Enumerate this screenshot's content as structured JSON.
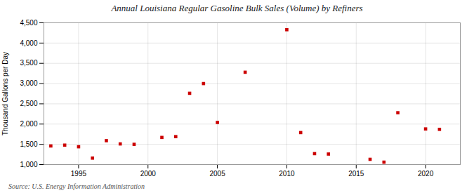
{
  "chart_data": {
    "type": "scatter",
    "title": "Annual Louisiana Regular Gasoline Bulk Sales (Volume) by Refiners",
    "ylabel": "Thousand Gallons per Day",
    "annotations": [
      "Source: U.S. Energy Information Administration"
    ],
    "x": [
      1993,
      1994,
      1995,
      1996,
      1997,
      1998,
      1999,
      2001,
      2002,
      2003,
      2004,
      2005,
      2007,
      2010,
      2011,
      2012,
      2013,
      2016,
      2017,
      2018,
      2020,
      2021
    ],
    "values": [
      1460,
      1480,
      1440,
      1160,
      1590,
      1510,
      1500,
      1670,
      1690,
      2760,
      3000,
      2040,
      3280,
      4330,
      1790,
      1270,
      1260,
      1130,
      1060,
      2280,
      1880,
      1870
    ],
    "color": "#cc0000",
    "marker": "square",
    "grid": true,
    "xlim": [
      1992.5,
      2022.5
    ],
    "xticks": [
      1995,
      2000,
      2005,
      2010,
      2015,
      2020
    ],
    "ylim": [
      1000,
      4500
    ],
    "yticks": [
      {
        "value": 1000,
        "label": "1,000"
      },
      {
        "value": 1500,
        "label": "1,500"
      },
      {
        "value": 2000,
        "label": "2,000"
      },
      {
        "value": 2500,
        "label": "2,500"
      },
      {
        "value": 3000,
        "label": "3,000"
      },
      {
        "value": 3500,
        "label": "3,500"
      },
      {
        "value": 4000,
        "label": "4,000"
      },
      {
        "value": 4500,
        "label": "4,500"
      }
    ]
  }
}
